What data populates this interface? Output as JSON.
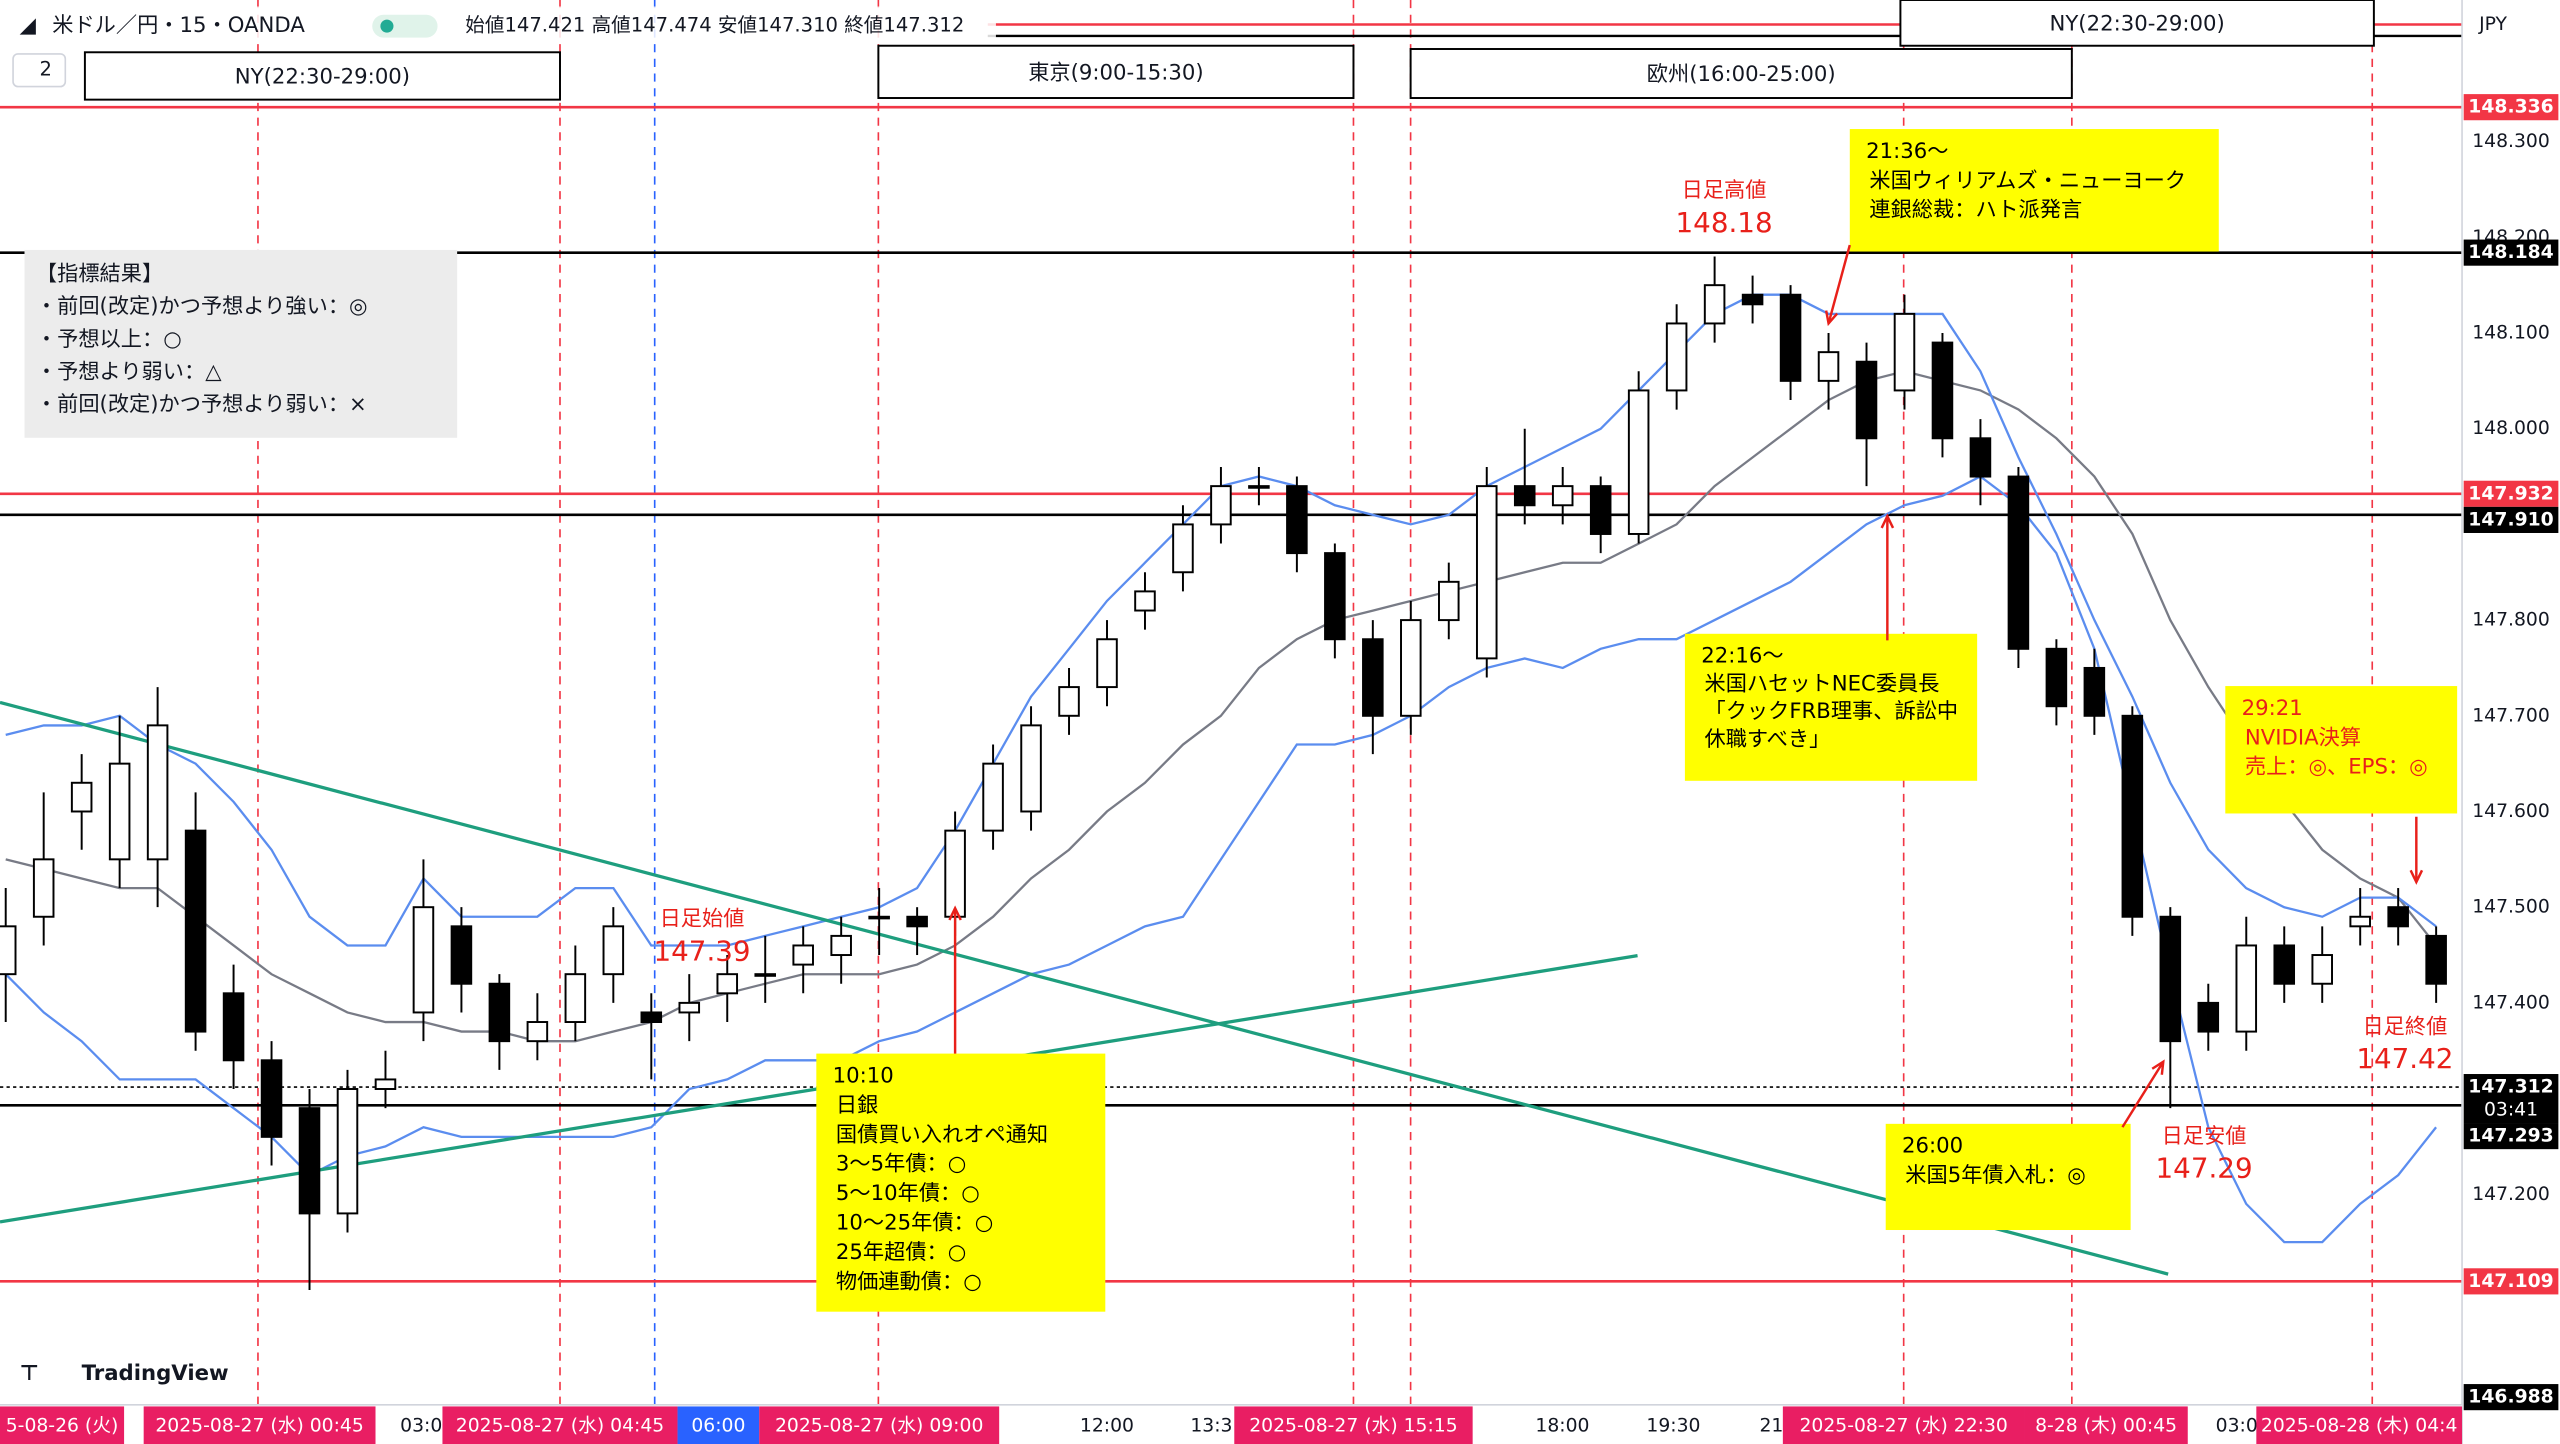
{
  "chart_data": {
    "type": "candlestick",
    "title": "米ドル／円・15・OANDA",
    "header_values": "始値147.421 高値147.474 安値147.310 終値147.312",
    "currency": "JPY",
    "open": [
      147.43,
      147.49,
      147.6,
      147.55,
      147.55,
      147.58,
      147.41,
      147.34,
      147.29,
      147.18,
      147.31,
      147.39,
      147.48,
      147.42,
      147.36,
      147.38,
      147.43,
      147.39,
      147.39,
      147.41,
      147.43,
      147.44,
      147.45,
      147.49,
      147.49,
      147.49,
      147.58,
      147.6,
      147.7,
      147.73,
      147.81,
      147.85,
      147.9,
      147.94,
      147.94,
      147.87,
      147.78,
      147.7,
      147.8,
      147.76,
      147.94,
      147.92,
      147.94,
      147.89,
      148.04,
      148.11,
      148.14,
      148.14,
      148.05,
      148.07,
      148.04,
      148.09,
      147.99,
      147.95,
      147.77,
      147.75,
      147.7,
      147.49,
      147.4,
      147.37,
      147.46,
      147.42,
      147.48,
      147.5,
      147.47
    ],
    "high": [
      147.52,
      147.62,
      147.66,
      147.7,
      147.73,
      147.62,
      147.44,
      147.36,
      147.31,
      147.33,
      147.35,
      147.55,
      147.5,
      147.43,
      147.41,
      147.46,
      147.5,
      147.41,
      147.43,
      147.45,
      147.47,
      147.48,
      147.49,
      147.52,
      147.5,
      147.6,
      147.67,
      147.71,
      147.75,
      147.8,
      147.85,
      147.92,
      147.96,
      147.96,
      147.95,
      147.88,
      147.8,
      147.82,
      147.86,
      147.96,
      148.0,
      147.96,
      147.95,
      148.06,
      148.13,
      148.18,
      148.16,
      148.15,
      148.1,
      148.09,
      148.14,
      148.1,
      148.01,
      147.96,
      147.78,
      147.77,
      147.71,
      147.5,
      147.42,
      147.49,
      147.48,
      147.48,
      147.52,
      147.52,
      147.48
    ],
    "low": [
      147.38,
      147.46,
      147.56,
      147.52,
      147.5,
      147.35,
      147.31,
      147.23,
      147.1,
      147.16,
      147.29,
      147.36,
      147.39,
      147.33,
      147.34,
      147.36,
      147.4,
      147.32,
      147.36,
      147.38,
      147.4,
      147.41,
      147.42,
      147.45,
      147.45,
      147.47,
      147.56,
      147.58,
      147.68,
      147.71,
      147.79,
      147.83,
      147.88,
      147.92,
      147.85,
      147.76,
      147.66,
      147.68,
      147.78,
      147.74,
      147.9,
      147.9,
      147.87,
      147.88,
      148.02,
      148.09,
      148.11,
      148.03,
      148.02,
      147.94,
      148.02,
      147.97,
      147.92,
      147.75,
      147.69,
      147.68,
      147.47,
      147.29,
      147.35,
      147.35,
      147.4,
      147.4,
      147.46,
      147.46,
      147.4
    ],
    "close": [
      147.48,
      147.55,
      147.63,
      147.65,
      147.69,
      147.37,
      147.34,
      147.26,
      147.18,
      147.31,
      147.32,
      147.5,
      147.42,
      147.36,
      147.38,
      147.43,
      147.48,
      147.38,
      147.4,
      147.43,
      147.43,
      147.46,
      147.47,
      147.49,
      147.48,
      147.58,
      147.65,
      147.69,
      147.73,
      147.78,
      147.83,
      147.9,
      147.94,
      147.94,
      147.87,
      147.78,
      147.7,
      147.8,
      147.84,
      147.94,
      147.92,
      147.94,
      147.89,
      148.04,
      148.11,
      148.15,
      148.13,
      148.05,
      148.08,
      147.99,
      148.12,
      147.99,
      147.95,
      147.77,
      147.71,
      147.7,
      147.49,
      147.36,
      147.37,
      147.46,
      147.42,
      147.45,
      147.49,
      147.48,
      147.42
    ],
    "up_color": "#ffffff",
    "down_color": "#000000",
    "overlays": [
      {
        "color": "#787b86",
        "values": [
          147.55,
          147.54,
          147.53,
          147.52,
          147.52,
          147.49,
          147.46,
          147.43,
          147.41,
          147.39,
          147.38,
          147.38,
          147.37,
          147.37,
          147.36,
          147.36,
          147.37,
          147.38,
          147.4,
          147.41,
          147.42,
          147.43,
          147.43,
          147.43,
          147.44,
          147.46,
          147.49,
          147.53,
          147.56,
          147.6,
          147.63,
          147.67,
          147.7,
          147.75,
          147.78,
          147.8,
          147.81,
          147.82,
          147.83,
          147.84,
          147.85,
          147.86,
          147.86,
          147.88,
          147.9,
          147.94,
          147.97,
          148.0,
          148.03,
          148.05,
          148.06,
          148.05,
          148.04,
          148.02,
          147.99,
          147.95,
          147.89,
          147.8,
          147.73,
          147.67,
          147.61,
          147.56,
          147.53,
          147.51,
          147.46
        ]
      },
      {
        "color": "#5b8def",
        "values": [
          147.68,
          147.69,
          147.69,
          147.7,
          147.67,
          147.65,
          147.61,
          147.56,
          147.49,
          147.46,
          147.46,
          147.53,
          147.49,
          147.49,
          147.49,
          147.52,
          147.52,
          147.46,
          147.46,
          147.46,
          147.47,
          147.48,
          147.49,
          147.5,
          147.52,
          147.58,
          147.65,
          147.72,
          147.77,
          147.82,
          147.86,
          147.9,
          147.94,
          147.95,
          147.94,
          147.92,
          147.91,
          147.9,
          147.91,
          147.94,
          147.96,
          147.98,
          148.0,
          148.04,
          148.08,
          148.12,
          148.14,
          148.14,
          148.12,
          148.12,
          148.12,
          148.12,
          148.06,
          147.97,
          147.89,
          147.8,
          147.72,
          147.63,
          147.56,
          147.52,
          147.5,
          147.49,
          147.51,
          147.51,
          147.48
        ]
      },
      {
        "color": "#5b8def",
        "values": [
          147.43,
          147.39,
          147.36,
          147.32,
          147.32,
          147.32,
          147.29,
          147.26,
          147.22,
          147.24,
          147.25,
          147.27,
          147.26,
          147.26,
          147.26,
          147.26,
          147.26,
          147.27,
          147.31,
          147.32,
          147.34,
          147.34,
          147.34,
          147.36,
          147.37,
          147.39,
          147.41,
          147.43,
          147.44,
          147.46,
          147.48,
          147.49,
          147.55,
          147.61,
          147.67,
          147.67,
          147.68,
          147.7,
          147.73,
          147.75,
          147.76,
          147.75,
          147.77,
          147.78,
          147.78,
          147.8,
          147.82,
          147.84,
          147.87,
          147.9,
          147.92,
          147.93,
          147.95,
          147.92,
          147.87,
          147.77,
          147.6,
          147.43,
          147.27,
          147.19,
          147.15,
          147.15,
          147.19,
          147.22,
          147.27
        ]
      }
    ],
    "ylim": [
      146.98,
      148.448
    ],
    "yticks": [
      {
        "value": 147.2,
        "label": "147.200"
      },
      {
        "value": 147.3,
        "label": "147.300"
      },
      {
        "value": 147.4,
        "label": "147.400"
      },
      {
        "value": 147.5,
        "label": "147.500"
      },
      {
        "value": 147.6,
        "label": "147.600"
      },
      {
        "value": 147.7,
        "label": "147.700"
      },
      {
        "value": 147.8,
        "label": "147.800"
      },
      {
        "value": 147.9,
        "label": "147.900"
      },
      {
        "value": 148.0,
        "label": "148.000"
      },
      {
        "value": 148.1,
        "label": "148.100"
      },
      {
        "value": 148.2,
        "label": "148.200"
      },
      {
        "value": 148.3,
        "label": "148.300"
      }
    ],
    "grid": false,
    "levels": [
      {
        "value": 148.336,
        "color": "#f23645"
      },
      {
        "value": 148.184,
        "color": "#000000"
      },
      {
        "value": 147.932,
        "color": "#f23645"
      },
      {
        "value": 147.91,
        "label": "147.910",
        "color": "#000000"
      },
      {
        "value": 147.312,
        "color": "#000000",
        "dotted": true,
        "countdown": "03:41"
      },
      {
        "value": 147.293,
        "color": "#000000"
      },
      {
        "value": 147.109,
        "color": "#f23645"
      },
      {
        "value": 146.988,
        "color": "#000000",
        "label_only": true
      }
    ],
    "x_labels": [
      {
        "label": "5-08-26 (火)",
        "style": "red"
      },
      {
        "label": "2025-08-27 (水)  00:45",
        "style": "red"
      },
      {
        "label": "03:0",
        "style": "plain"
      },
      {
        "label": "2025-08-27 (水)  04:45",
        "style": "red"
      },
      {
        "label": "06:00",
        "style": "blue"
      },
      {
        "label": "2025-08-27 (水)  09:00",
        "style": "red"
      },
      {
        "label": "12:00",
        "style": "plain"
      },
      {
        "label": "13:3",
        "style": "plain"
      },
      {
        "label": "2025-08-27 (水)  15:15",
        "style": "red"
      },
      {
        "label": "18:00",
        "style": "plain"
      },
      {
        "label": "19:30",
        "style": "plain"
      },
      {
        "label": "21",
        "style": "plain"
      },
      {
        "label": "2025-08-27 (水)  22:30",
        "style": "red"
      },
      {
        "label": "8-28 (木)  00:45",
        "style": "red"
      },
      {
        "label": "03:0",
        "style": "plain"
      },
      {
        "label": "2025-08-28 (木)  04:4",
        "style": "red"
      }
    ],
    "notes": [
      {
        "text": "日足高値",
        "value": 148.18
      },
      {
        "text": "日足始値",
        "value": 147.39
      },
      {
        "text": "日足安値",
        "value": 147.29
      },
      {
        "text": "日足終値",
        "value": 147.42
      }
    ]
  },
  "toolbar": {
    "badge": "2"
  },
  "sessions": [
    "NY(22:30-29:00)",
    "東京(9:00-15:30)",
    "欧州(16:00-25:00)",
    "NY(22:30-29:00)"
  ],
  "legend_box": {
    "lines": [
      "【指標結果】",
      "・前回(改定)かつ予想より強い：◎",
      "・予想以上：○",
      "・予想より弱い：△",
      "・前回(改定)かつ予想より弱い：×"
    ]
  },
  "callouts": [
    {
      "lines": [
        "21:36～",
        "米国ウィリアムズ・ニューヨーク",
        "連銀総裁：ハト派発言"
      ],
      "color": "#000000"
    },
    {
      "lines": [
        "22:16～",
        "米国ハセットNEC委員長",
        "「クックFRB理事、訴訟中",
        "休職すべき」"
      ],
      "color": "#000000"
    },
    {
      "lines": [
        "10:10",
        "日銀",
        "国債買い入れオペ通知",
        "3～5年債：○",
        "5～10年債：○",
        "10～25年債：○",
        "25年超債：○",
        "物価連動債：○"
      ],
      "color": "#000000"
    },
    {
      "lines": [
        "26:00",
        "米国5年債入札：◎"
      ],
      "color": "#000000"
    },
    {
      "lines": [
        "29:21",
        "NVIDIA決算",
        "売上：◎、EPS：◎"
      ],
      "color": "#e8201a"
    }
  ],
  "logo": "TradingView"
}
